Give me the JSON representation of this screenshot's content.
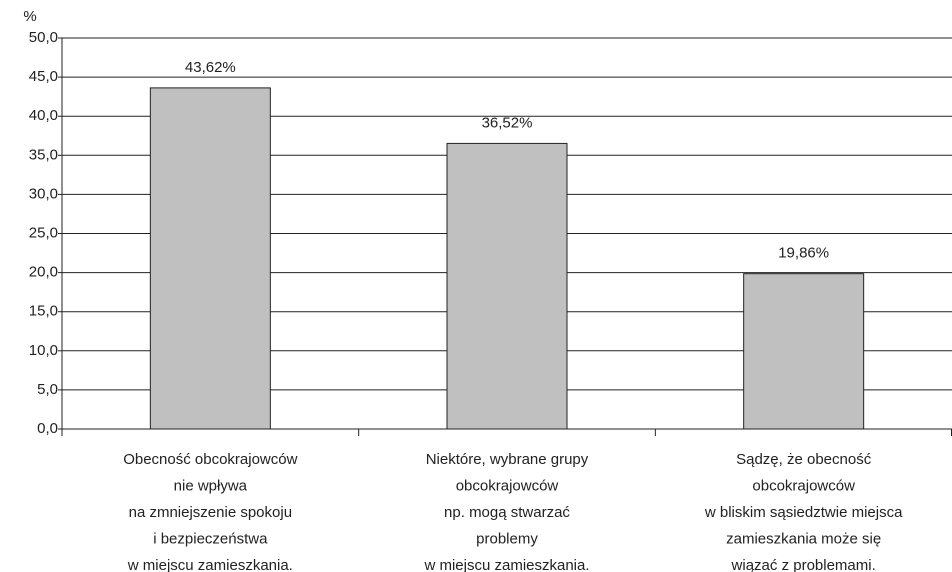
{
  "chart_data": {
    "type": "bar",
    "y_axis_label": "%",
    "categories": [
      [
        "Obecność obcokrajowców",
        "nie wpływa",
        "na zmniejszenie spokoju",
        "i bezpieczeństwa",
        "w miejscu zamieszkania."
      ],
      [
        "Niektóre, wybrane grupy",
        "obcokrajowców",
        "np. mogą stwarzać",
        "problemy",
        "w miejscu zamieszkania."
      ],
      [
        "Sądzę, że obecność",
        "obcokrajowców",
        "w bliskim sąsiedztwie miejsca",
        "zamieszkania może się",
        "wiązać z problemami."
      ]
    ],
    "values": [
      43.62,
      36.52,
      19.86
    ],
    "value_labels": [
      "43,62%",
      "36,52%",
      "19,86%"
    ],
    "color": "#c0c0c0",
    "ylim": [
      0,
      50
    ],
    "yticks": [
      {
        "value": 0,
        "label": "0,0"
      },
      {
        "value": 5,
        "label": "5,0"
      },
      {
        "value": 10,
        "label": "10,0"
      },
      {
        "value": 15,
        "label": "15,0"
      },
      {
        "value": 20,
        "label": "20,0"
      },
      {
        "value": 25,
        "label": "25,0"
      },
      {
        "value": 30,
        "label": "30,0"
      },
      {
        "value": 35,
        "label": "35,0"
      },
      {
        "value": 40,
        "label": "40,0"
      },
      {
        "value": 45,
        "label": "45,0"
      },
      {
        "value": 50,
        "label": "50,0"
      }
    ],
    "grid": true
  }
}
